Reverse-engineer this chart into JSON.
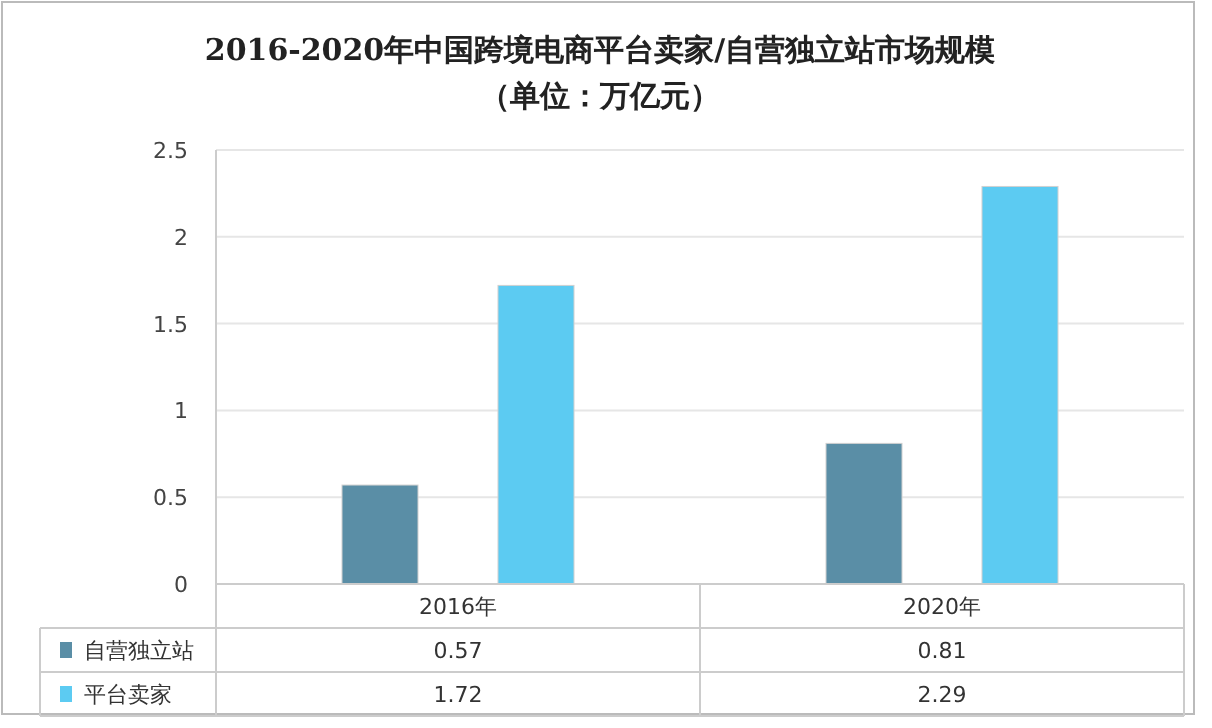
{
  "chart_data": {
    "type": "bar",
    "title": "2016-2020年中国跨境电商平台卖家/自营独立站市场规模",
    "subtitle": "（单位：万亿元）",
    "categories": [
      "2016年",
      "2020年"
    ],
    "series": [
      {
        "name": "自营独立站",
        "color": "#5a8ea6",
        "values": [
          0.57,
          0.81
        ]
      },
      {
        "name": "平台卖家",
        "color": "#5ccbf2",
        "values": [
          1.72,
          2.29
        ]
      }
    ],
    "ylim": [
      0,
      2.5
    ],
    "yticks": [
      0,
      0.5,
      1,
      1.5,
      2,
      2.5
    ],
    "grid": "y",
    "legend": "bottom",
    "data_labels": true
  }
}
